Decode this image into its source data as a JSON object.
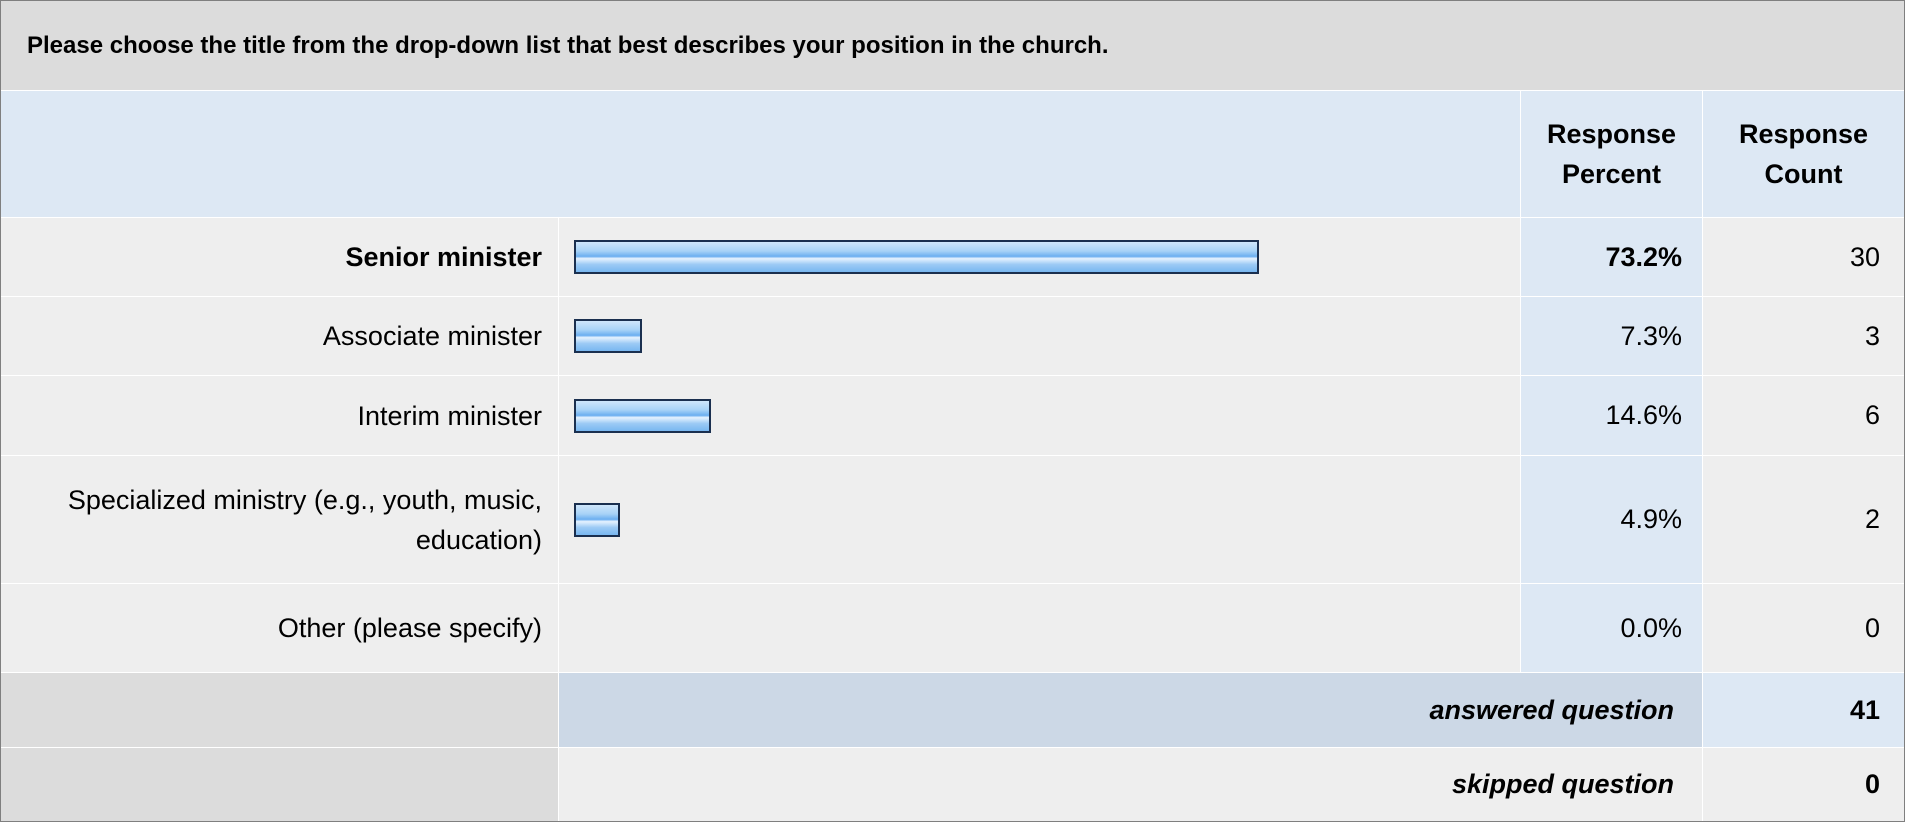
{
  "question": "Please choose the title from the drop-down list that best describes your position in the church.",
  "headers": {
    "percent": [
      "Response",
      "Percent"
    ],
    "count": [
      "Response",
      "Count"
    ]
  },
  "chart_data": {
    "type": "bar",
    "orientation": "horizontal",
    "categories": [
      "Senior minister",
      "Associate minister",
      "Interim minister",
      "Specialized ministry (e.g., youth, music, education)",
      "Other (please specify)"
    ],
    "percent_labels": [
      "73.2%",
      "7.3%",
      "14.6%",
      "4.9%",
      "0.0%"
    ],
    "values": [
      73.2,
      7.3,
      14.6,
      4.9,
      0.0
    ],
    "counts": [
      30,
      3,
      6,
      2,
      0
    ],
    "highlighted_index": 0,
    "xlim": [
      0,
      100
    ]
  },
  "summary": {
    "answered_label": "answered question",
    "answered_value": "41",
    "skipped_label": "skipped question",
    "skipped_value": "0"
  }
}
